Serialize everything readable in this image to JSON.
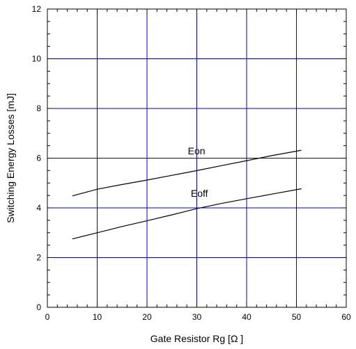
{
  "chart_data": {
    "type": "line",
    "title": "",
    "xlabel": "Gate Resistor Rg [Ω ]",
    "ylabel": "Switching Energy Losses [mJ]",
    "xlim": [
      0,
      60
    ],
    "ylim": [
      0,
      12
    ],
    "x_ticks": [
      0,
      10,
      20,
      30,
      40,
      50,
      60
    ],
    "y_ticks": [
      0,
      2,
      4,
      6,
      8,
      10,
      12
    ],
    "grid": true,
    "series": [
      {
        "name": "Eon",
        "x": [
          5,
          10,
          15,
          20,
          25,
          30,
          35,
          40,
          45,
          51
        ],
        "y": [
          4.48,
          4.75,
          4.94,
          5.12,
          5.31,
          5.5,
          5.7,
          5.9,
          6.1,
          6.32
        ]
      },
      {
        "name": "Eoff",
        "x": [
          5,
          10,
          15,
          20,
          25,
          30,
          35,
          40,
          45,
          51
        ],
        "y": [
          2.75,
          3.0,
          3.25,
          3.48,
          3.72,
          3.97,
          4.18,
          4.37,
          4.55,
          4.77
        ]
      }
    ]
  },
  "colors": {
    "grid": "#0000cc",
    "axis": "#000000",
    "line": "#000000"
  }
}
